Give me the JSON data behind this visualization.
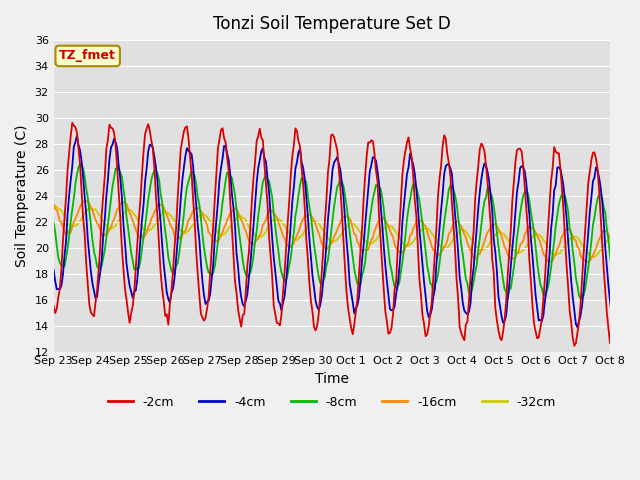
{
  "title": "Tonzi Soil Temperature Set D",
  "xlabel": "Time",
  "ylabel": "Soil Temperature (C)",
  "ylim": [
    12,
    36
  ],
  "yticks": [
    12,
    14,
    16,
    18,
    20,
    22,
    24,
    26,
    28,
    30,
    32,
    34,
    36
  ],
  "annotation_text": "TZ_fmet",
  "annotation_color": "#cc0000",
  "annotation_bg": "#ffffcc",
  "annotation_border": "#aa8800",
  "colors": {
    "-2cm": "#dd0000",
    "-4cm": "#0000cc",
    "-8cm": "#00bb00",
    "-16cm": "#ff8800",
    "-32cm": "#cccc00"
  },
  "legend_labels": [
    "-2cm",
    "-4cm",
    "-8cm",
    "-16cm",
    "-32cm"
  ],
  "x_tick_labels": [
    "Sep 23",
    "Sep 24",
    "Sep 25",
    "Sep 26",
    "Sep 27",
    "Sep 28",
    "Sep 29",
    "Sep 30",
    "Oct 1",
    "Oct 2",
    "Oct 3",
    "Oct 4",
    "Oct 5",
    "Oct 6",
    "Oct 7",
    "Oct 8"
  ],
  "lw": 1.3
}
